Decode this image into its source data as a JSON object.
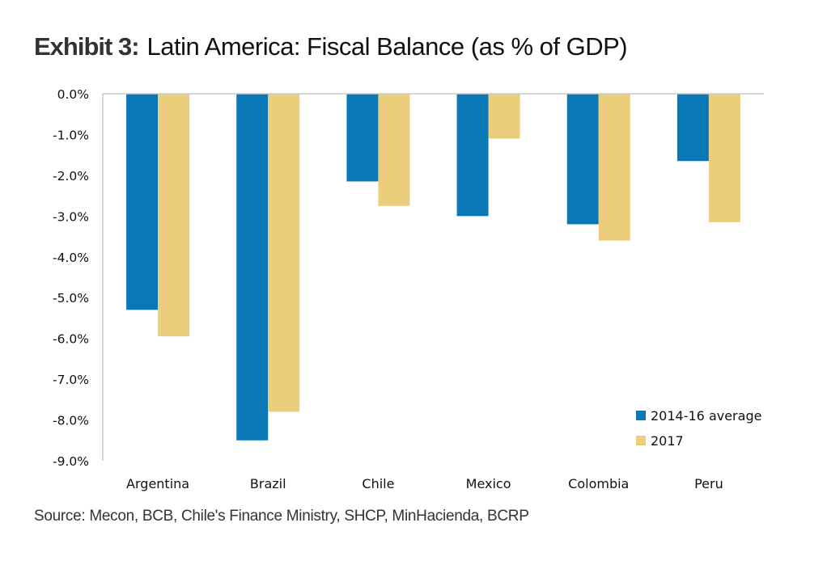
{
  "title": {
    "exhibit": "Exhibit 3:",
    "text": "Latin America: Fiscal Balance (as % of GDP)"
  },
  "source": "Source: Mecon, BCB, Chile's Finance Ministry, SHCP, MinHacienda, BCRP",
  "colors": {
    "series_2014_16": "#0a77b6",
    "series_2017": "#ebcd7b",
    "axis": "#c8c8c8"
  },
  "chart_data": {
    "type": "bar",
    "title": "Latin America: Fiscal Balance (as % of GDP)",
    "xlabel": "",
    "ylabel": "",
    "categories": [
      "Argentina",
      "Brazil",
      "Chile",
      "Mexico",
      "Colombia",
      "Peru"
    ],
    "series": [
      {
        "name": "2014-16 average",
        "values": [
          -5.3,
          -8.5,
          -2.15,
          -3.0,
          -3.2,
          -1.65
        ]
      },
      {
        "name": "2017",
        "values": [
          -5.95,
          -7.8,
          -2.75,
          -1.1,
          -3.6,
          -3.15
        ]
      }
    ],
    "ylim": [
      -9.0,
      0.0
    ],
    "yticks": [
      0,
      -1,
      -2,
      -3,
      -4,
      -5,
      -6,
      -7,
      -8,
      -9
    ],
    "ytick_labels": [
      "0.0%",
      "-1.0%",
      "-2.0%",
      "-3.0%",
      "-4.0%",
      "-5.0%",
      "-6.0%",
      "-7.0%",
      "-8.0%",
      "-9.0%"
    ],
    "grid": false,
    "legend_position": "bottom-right"
  }
}
